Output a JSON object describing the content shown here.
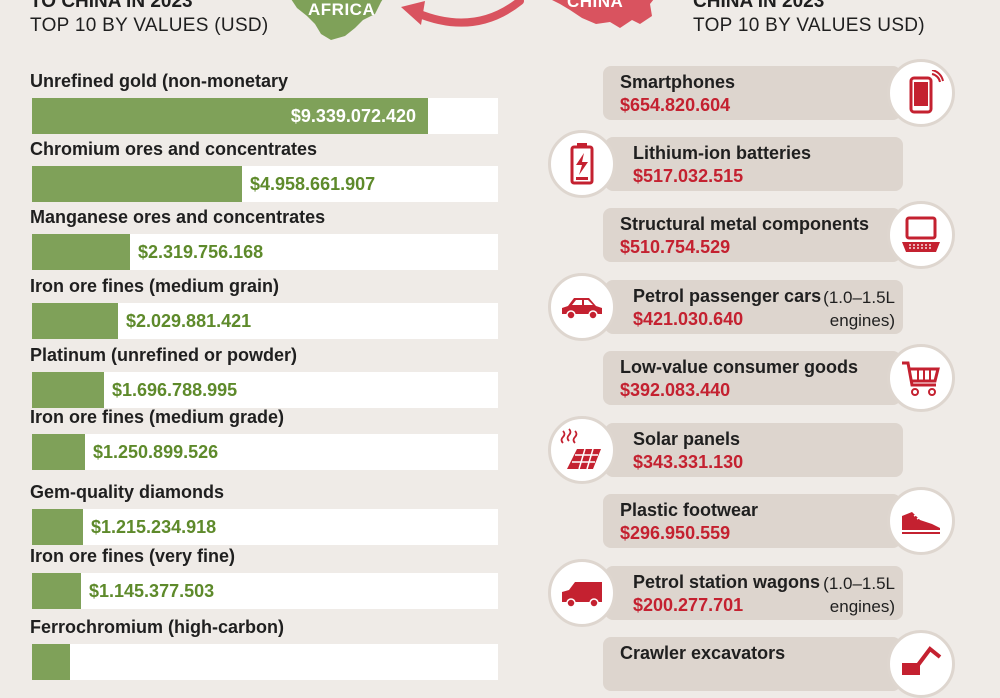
{
  "header": {
    "left_title": "TO CHINA IN 2023",
    "left_subtitle": "TOP 10 BY VALUES (USD)",
    "right_title": "CHINA IN 2023",
    "right_subtitle": "TOP 10 BY VALUES USD)",
    "africa_label": "AFRICA",
    "china_label": "CHINA"
  },
  "colors": {
    "export_bar": "#7fa159",
    "export_value": "#5e8a2b",
    "import_value": "#c42130",
    "africa": "#7fa159",
    "china": "#d9535f",
    "background": "#efebe7"
  },
  "chart_data": [
    {
      "type": "bar",
      "orientation": "horizontal",
      "categories": [
        "Unrefined gold (non-monetary",
        "Chromium ores and concentrates",
        "Manganese ores and concentrates",
        "Iron ore fines (medium grain)",
        "Platinum (unrefined or powder)",
        "Iron ore fines (medium grade)",
        "Gem-quality diamonds",
        "Iron ore fines (very fine)",
        "Ferrochromium (high-carbon)"
      ],
      "values": [
        9339072420,
        4958661907,
        2319756168,
        2029881421,
        1696788995,
        1250899526,
        1215234918,
        1145377503,
        null
      ],
      "value_labels": [
        "$9.339.072.420",
        "$4.958.661.907",
        "$2.319.756.168",
        "$2.029.881.421",
        "$1.696.788.995",
        "$1.250.899.526",
        "$1.215.234.918",
        "$1.145.377.503",
        ""
      ]
    },
    {
      "type": "table",
      "items": [
        {
          "name": "Smartphones",
          "value_label": "$654.820.604",
          "value": 654820604,
          "icon": "smartphone-icon",
          "note": ""
        },
        {
          "name": "Lithium-ion batteries",
          "value_label": "$517.032.515",
          "value": 517032515,
          "icon": "battery-icon",
          "note": ""
        },
        {
          "name": "Structural metal components",
          "value_label": "$510.754.529",
          "value": 510754529,
          "icon": "laptop-icon",
          "note": ""
        },
        {
          "name": "Petrol passenger cars",
          "value_label": "$421.030.640",
          "value": 421030640,
          "icon": "car-icon",
          "note_line1": "(1.0–1.5L",
          "note_line2": "engines)"
        },
        {
          "name": "Low-value consumer goods",
          "value_label": "$392.083.440",
          "value": 392083440,
          "icon": "shopping-cart-icon",
          "note": ""
        },
        {
          "name": "Solar panels",
          "value_label": "$343.331.130",
          "value": 343331130,
          "icon": "solar-panel-icon",
          "note": ""
        },
        {
          "name": "Plastic footwear",
          "value_label": "$296.950.559",
          "value": 296950559,
          "icon": "shoe-icon",
          "note": ""
        },
        {
          "name": "Petrol station wagons",
          "value_label": "$200.277.701",
          "value": 200277701,
          "icon": "station-wagon-icon",
          "note_line1": "(1.0–1.5L",
          "note_line2": "engines)"
        },
        {
          "name": "Crawler excavators",
          "value_label": "",
          "value": null,
          "icon": "excavator-icon",
          "note": ""
        }
      ]
    }
  ]
}
